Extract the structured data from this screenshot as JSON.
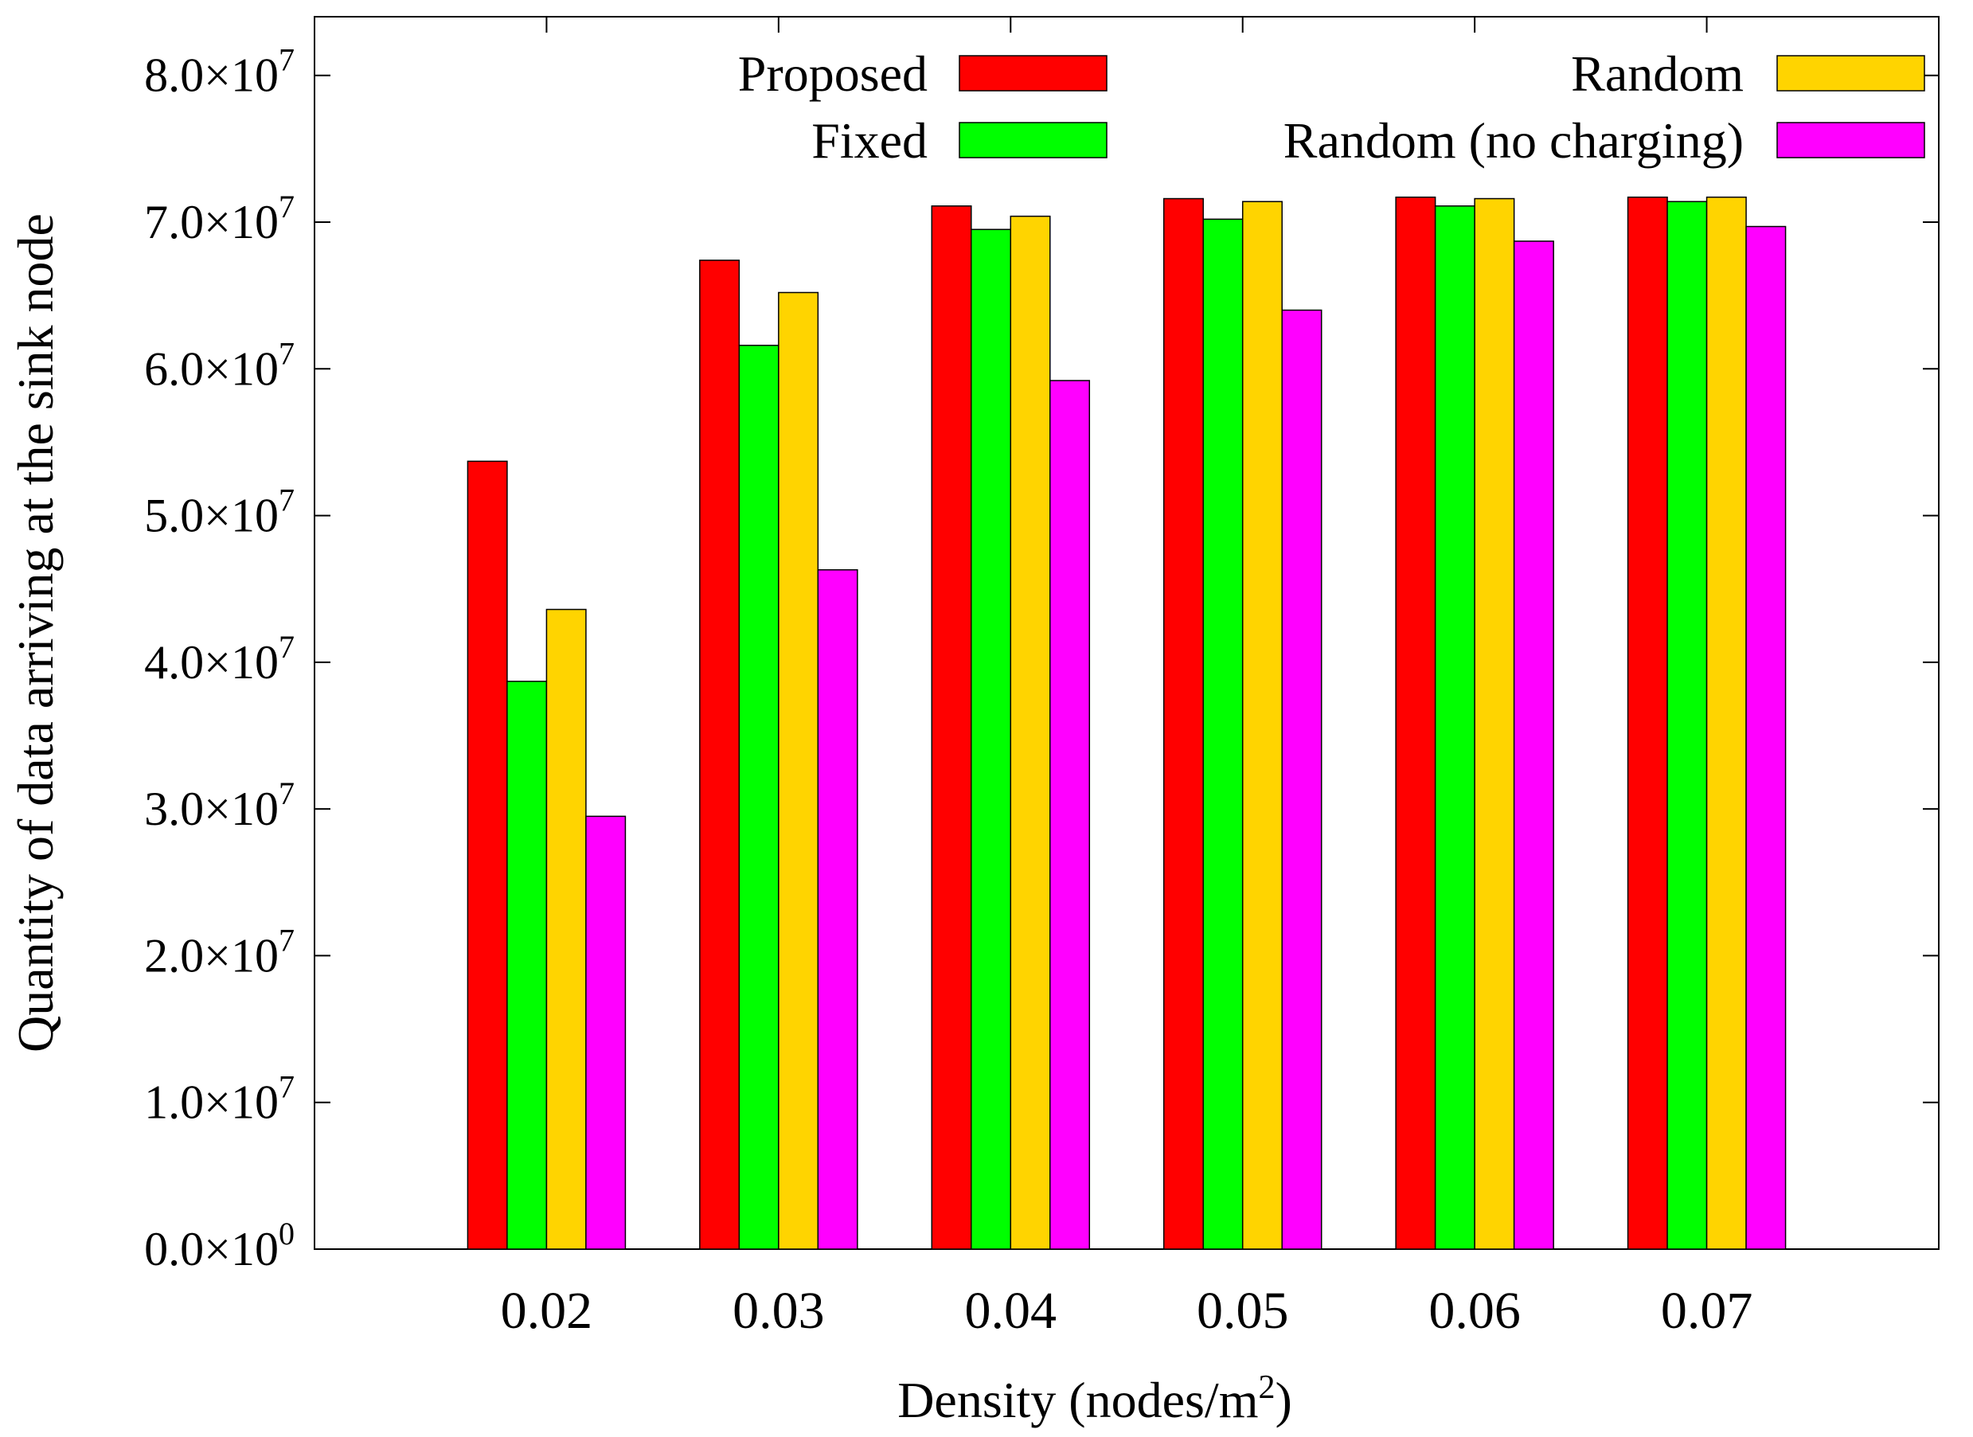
{
  "chart_data": {
    "type": "bar",
    "title": "",
    "xlabel": "Density (nodes/m",
    "xlabel_sup": "2",
    "xlabel_suffix": ")",
    "ylabel": "Quantity of data arriving at the sink node",
    "categories": [
      "0.02",
      "0.03",
      "0.04",
      "0.05",
      "0.06",
      "0.07"
    ],
    "ylim": [
      0,
      84000000
    ],
    "grid": false,
    "legend_position": "top",
    "series": [
      {
        "name": "Proposed",
        "color": "#ff0000",
        "values": [
          53700000,
          67400000,
          71100000,
          71600000,
          71700000,
          71700000
        ]
      },
      {
        "name": "Fixed",
        "color": "#00ff00",
        "values": [
          38700000,
          61600000,
          69500000,
          70200000,
          71100000,
          71400000
        ]
      },
      {
        "name": "Random",
        "color": "#ffd400",
        "values": [
          43600000,
          65200000,
          70400000,
          71400000,
          71600000,
          71700000
        ]
      },
      {
        "name": "Random (no charging)",
        "color": "#ff00ff",
        "values": [
          29500000,
          46300000,
          59200000,
          64000000,
          68700000,
          69700000
        ]
      }
    ],
    "yticks": [
      {
        "mant": "0.0×10",
        "exp": "0",
        "value": 0
      },
      {
        "mant": "1.0×10",
        "exp": "7",
        "value": 10000000
      },
      {
        "mant": "2.0×10",
        "exp": "7",
        "value": 20000000
      },
      {
        "mant": "3.0×10",
        "exp": "7",
        "value": 30000000
      },
      {
        "mant": "4.0×10",
        "exp": "7",
        "value": 40000000
      },
      {
        "mant": "5.0×10",
        "exp": "7",
        "value": 50000000
      },
      {
        "mant": "6.0×10",
        "exp": "7",
        "value": 60000000
      },
      {
        "mant": "7.0×10",
        "exp": "7",
        "value": 70000000
      },
      {
        "mant": "8.0×10",
        "exp": "7",
        "value": 80000000
      }
    ]
  }
}
